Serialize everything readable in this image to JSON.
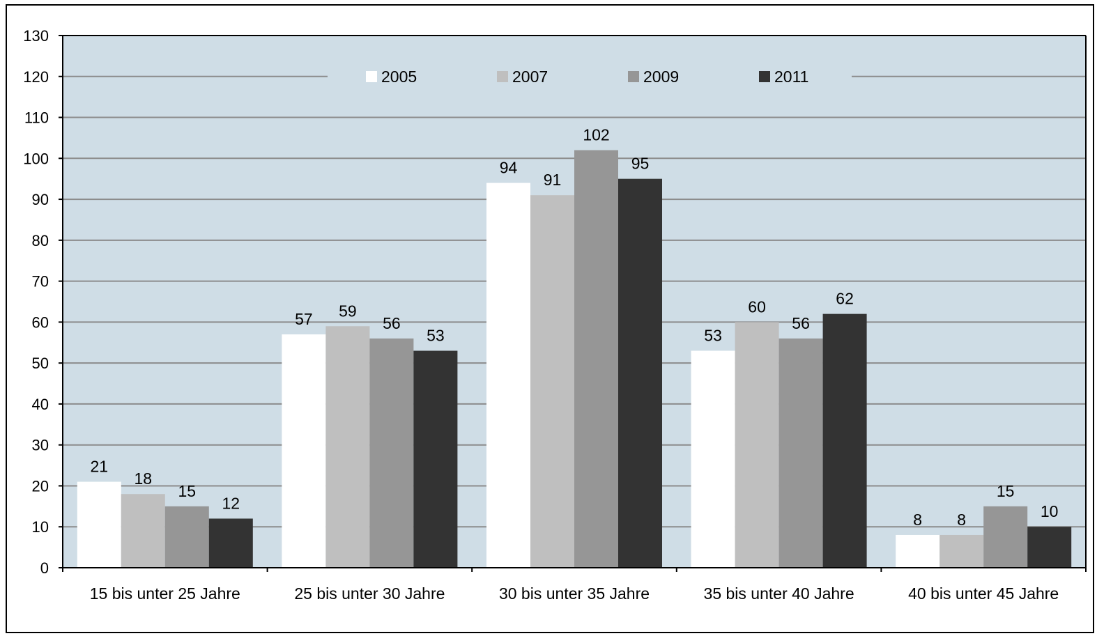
{
  "chart_data": {
    "type": "bar",
    "title": "",
    "xlabel": "",
    "ylabel": "",
    "categories": [
      "15 bis unter 25 Jahre",
      "25 bis unter 30 Jahre",
      "30 bis unter 35 Jahre",
      "35 bis unter 40 Jahre",
      "40 bis unter 45 Jahre"
    ],
    "series": [
      {
        "name": "2005",
        "color": "#ffffff",
        "values": [
          21,
          57,
          94,
          53,
          8
        ]
      },
      {
        "name": "2007",
        "color": "#bfbfbf",
        "values": [
          18,
          59,
          91,
          60,
          8
        ]
      },
      {
        "name": "2009",
        "color": "#969696",
        "values": [
          15,
          56,
          102,
          56,
          15
        ]
      },
      {
        "name": "2011",
        "color": "#333333",
        "values": [
          12,
          53,
          95,
          62,
          10
        ]
      }
    ],
    "ylim": [
      0,
      130
    ],
    "yticks": [
      0,
      10,
      20,
      30,
      40,
      50,
      60,
      70,
      80,
      90,
      100,
      110,
      120,
      130
    ],
    "grid": true,
    "legend_position": "top-center",
    "plot_background": "#cfdde6"
  }
}
